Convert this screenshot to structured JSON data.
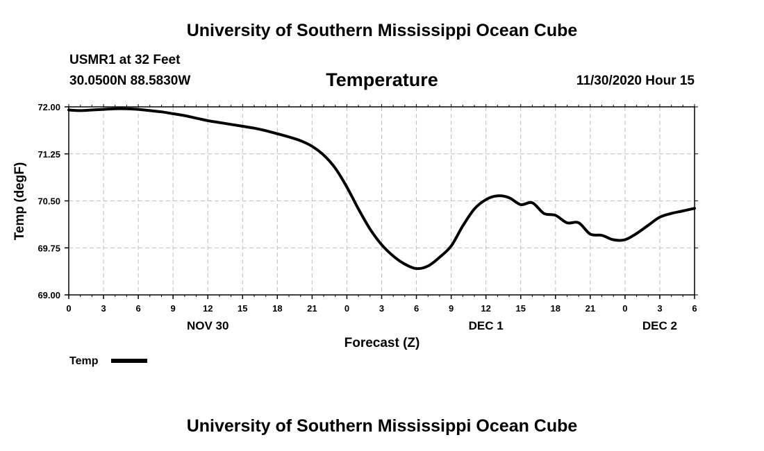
{
  "header": {
    "top": "University of Southern Mississippi Ocean Cube",
    "bottom": "University of Southern Mississippi Ocean Cube"
  },
  "station": {
    "name": "USMR1 at 32 Feet",
    "coords": "30.0500N 88.5830W"
  },
  "plot_title": "Temperature",
  "timestamp": "11/30/2020 Hour 15",
  "chart_data": {
    "type": "line",
    "title": "Temperature",
    "xlabel": "Forecast (Z)",
    "ylabel": "Temp (degF)",
    "xlim": [
      0,
      54
    ],
    "ylim": [
      69.0,
      72.0
    ],
    "yticks": [
      "72.00",
      "71.25",
      "70.50",
      "69.75",
      "69.00"
    ],
    "ytick_values": [
      72.0,
      71.25,
      70.5,
      69.75,
      69.0
    ],
    "xtick_labels": [
      "0",
      "3",
      "6",
      "9",
      "12",
      "15",
      "18",
      "21",
      "0",
      "3",
      "6",
      "9",
      "12",
      "15",
      "18",
      "21",
      "0",
      "3",
      "6"
    ],
    "day_labels": [
      {
        "label": "NOV 30",
        "hour": 12
      },
      {
        "label": "DEC 1",
        "hour": 36
      },
      {
        "label": "DEC 2",
        "hour": 51
      }
    ],
    "grid": true,
    "legend": {
      "position": "bottom-left",
      "entries": [
        "Temp"
      ]
    },
    "series": [
      {
        "name": "Temp",
        "color": "#000000",
        "x": [
          0,
          1,
          2,
          3,
          4,
          5,
          6,
          7,
          8,
          9,
          10,
          11,
          12,
          13,
          14,
          15,
          16,
          17,
          18,
          19,
          20,
          21,
          22,
          23,
          24,
          25,
          26,
          27,
          28,
          29,
          30,
          31,
          32,
          33,
          34,
          35,
          36,
          37,
          38,
          39,
          40,
          41,
          42,
          43,
          44,
          45,
          46,
          47,
          48,
          49,
          50,
          51,
          52,
          53,
          54
        ],
        "values": [
          71.95,
          71.94,
          71.95,
          71.96,
          71.97,
          71.97,
          71.96,
          71.94,
          71.92,
          71.89,
          71.86,
          71.82,
          71.78,
          71.75,
          71.72,
          71.69,
          71.66,
          71.62,
          71.57,
          71.52,
          71.46,
          71.37,
          71.23,
          71.02,
          70.72,
          70.37,
          70.05,
          69.8,
          69.62,
          69.49,
          69.42,
          69.46,
          69.6,
          69.78,
          70.1,
          70.37,
          70.52,
          70.58,
          70.55,
          70.44,
          70.47,
          70.3,
          70.27,
          70.15,
          70.15,
          69.97,
          69.95,
          69.88,
          69.88,
          69.98,
          70.11,
          70.24,
          70.3,
          70.34,
          70.38
        ]
      }
    ]
  }
}
